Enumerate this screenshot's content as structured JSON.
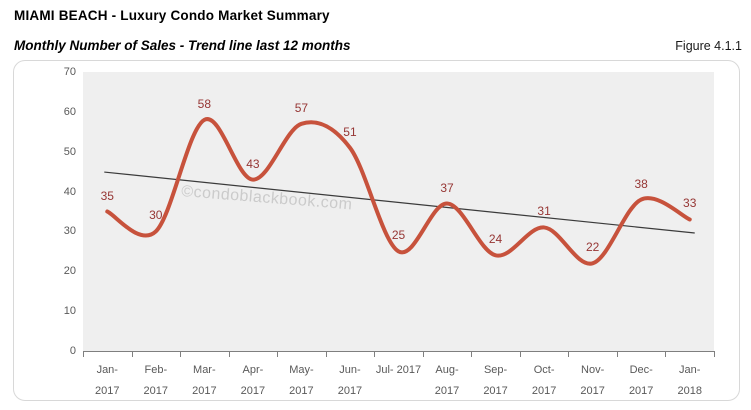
{
  "header": {
    "title": "MIAMI BEACH - Luxury Condo Market Summary",
    "subtitle": "Monthly Number of Sales - Trend line last 12 months",
    "figure_label": "Figure 4.1.1"
  },
  "watermark": "©condoblackbook.com",
  "chart_data": {
    "type": "line",
    "title": "Monthly Number of Sales - Trend line last 12 months",
    "categories": [
      "Jan-2017",
      "Feb-2017",
      "Mar-2017",
      "Apr-2017",
      "May-2017",
      "Jun-2017",
      "Jul-2017",
      "Aug-2017",
      "Sep-2017",
      "Oct-2017",
      "Nov-2017",
      "Dec-2017",
      "Jan-2018"
    ],
    "category_labels": [
      "Jan-\n2017",
      "Feb-\n2017",
      "Mar-\n2017",
      "Apr-\n2017",
      "May-\n2017",
      "Jun-\n2017",
      "Jul- 2017",
      "Aug-\n2017",
      "Sep-\n2017",
      "Oct-\n2017",
      "Nov-\n2017",
      "Dec-\n2017",
      "Jan-\n2018"
    ],
    "series": [
      {
        "name": "Monthly Number of Sales",
        "values": [
          35,
          30,
          58,
          43,
          57,
          51,
          25,
          37,
          24,
          31,
          22,
          38,
          33
        ]
      }
    ],
    "trendline": {
      "start_value": 44.9,
      "end_value": 29.6
    },
    "xlabel": "",
    "ylabel": "",
    "ylim": [
      0,
      70
    ],
    "yticks": [
      0,
      10,
      20,
      30,
      40,
      50,
      60,
      70
    ],
    "grid": false,
    "smooth": true,
    "legend": "none",
    "data_labels": "above",
    "colors": {
      "line": "#c7523c",
      "data_label": "#963634",
      "trendline": "#3b3b3b",
      "plot_bg": "#efefef",
      "axis_text": "#595959",
      "axis_line": "#7f7f7f",
      "watermark": "#cbcbcb",
      "container_border": "#d8d8d8"
    }
  }
}
